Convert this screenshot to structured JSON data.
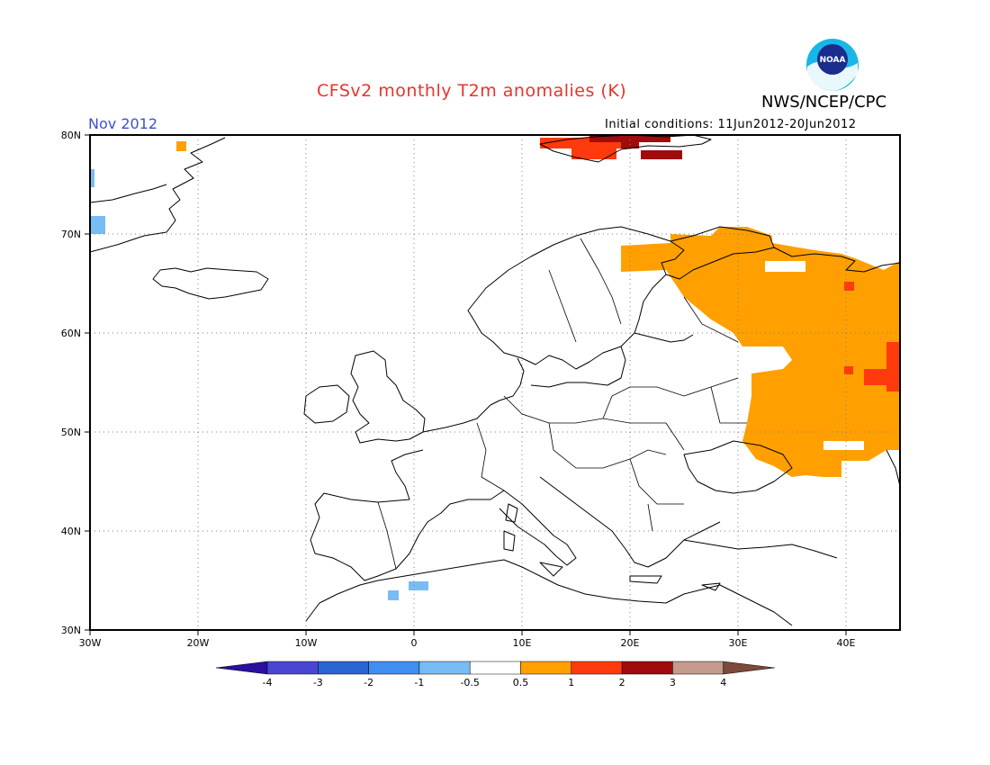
{
  "title": "CFSv2 monthly T2m anomalies (K)",
  "agency": "NWS/NCEP/CPC",
  "logo_text": "NOAA",
  "period": "Nov 2012",
  "initial_conditions": "Initial conditions: 11Jun2012-20Jun2012",
  "colors": {
    "title": "#e8342c",
    "period": "#3a4fd0",
    "grid": "#808080"
  },
  "map": {
    "lon_range": [
      -30,
      45
    ],
    "lat_range": [
      30,
      80
    ],
    "lat_ticks": [
      "80N",
      "70N",
      "60N",
      "50N",
      "40N",
      "30N"
    ],
    "lon_ticks": [
      "30W",
      "20W",
      "10W",
      "0",
      "10E",
      "20E",
      "30E",
      "40E"
    ]
  },
  "colorbar": {
    "colors": [
      "#2a0fa0",
      "#4a46d4",
      "#2a63d2",
      "#3e8ff0",
      "#78bcf5",
      "#ffffff",
      "#ffa000",
      "#ff3a0c",
      "#a00b0b",
      "#c49a8c",
      "#7b4a3a"
    ],
    "labels": [
      "-4",
      "-3",
      "-2",
      "-1",
      "-0.5",
      "0.5",
      "1",
      "2",
      "3",
      "4"
    ]
  },
  "anomaly_regions": [
    {
      "category": "0.5-1",
      "color": "#ffa000",
      "area": "NW Russia / Karelia",
      "lon": [
        19,
        45
      ],
      "lat": [
        64,
        70
      ]
    },
    {
      "category": "0.5-1",
      "color": "#ffa000",
      "area": "Central Russia",
      "lon": [
        30,
        45
      ],
      "lat": [
        46,
        64
      ]
    },
    {
      "category": "1-2",
      "color": "#ff3a0c",
      "area": "Svalbard",
      "lon": [
        13,
        25
      ],
      "lat": [
        78,
        80
      ]
    },
    {
      "category": "2-3",
      "color": "#a00b0b",
      "area": "Svalbard east",
      "lon": [
        22,
        27
      ],
      "lat": [
        77.5,
        80
      ]
    },
    {
      "category": "-1--0.5",
      "color": "#78bcf5",
      "area": "Greenland coast",
      "lon": [
        -30,
        -28.5
      ],
      "lat": [
        70,
        72
      ]
    },
    {
      "category": "-1--0.5",
      "color": "#78bcf5",
      "area": "Algeria",
      "lon": [
        -0.5,
        1.5
      ],
      "lat": [
        34,
        35
      ]
    }
  ]
}
